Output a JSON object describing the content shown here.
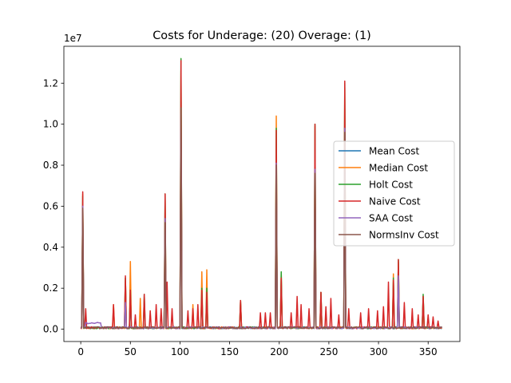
{
  "chart_data": {
    "type": "line",
    "title": "Costs for Underage: (20) Overage: (1)",
    "xlabel": "",
    "ylabel": "",
    "y_multiplier_label": "1e7",
    "xlim": [
      -17,
      382
    ],
    "ylim": [
      -600000,
      13800000
    ],
    "xticks": [
      0,
      50,
      100,
      150,
      200,
      250,
      300,
      350
    ],
    "yticks": [
      0,
      2000000,
      4000000,
      6000000,
      8000000,
      10000000,
      12000000
    ],
    "ytick_labels": [
      "0.0",
      "0.2",
      "0.4",
      "0.6",
      "0.8",
      "1.0",
      "1.2"
    ],
    "grid": false,
    "legend": "center-right",
    "baseline": 80000,
    "series": [
      {
        "name": "Mean Cost",
        "color": "#1f77b4",
        "spikes": [
          [
            2,
            5800000
          ],
          [
            50,
            1500000
          ],
          [
            85,
            5000000
          ],
          [
            101,
            10000000
          ],
          [
            197,
            8000000
          ],
          [
            236,
            7500000
          ],
          [
            266,
            9500000
          ],
          [
            320,
            2500000
          ]
        ]
      },
      {
        "name": "Median Cost",
        "color": "#ff7f0e",
        "spikes": [
          [
            2,
            6600000
          ],
          [
            33,
            1200000
          ],
          [
            45,
            2500000
          ],
          [
            50,
            3300000
          ],
          [
            60,
            1500000
          ],
          [
            85,
            6300000
          ],
          [
            101,
            12600000
          ],
          [
            113,
            1200000
          ],
          [
            122,
            2800000
          ],
          [
            127,
            2900000
          ],
          [
            161,
            1400000
          ],
          [
            197,
            10400000
          ],
          [
            202,
            2700000
          ],
          [
            236,
            9900000
          ],
          [
            242,
            1800000
          ],
          [
            266,
            11800000
          ],
          [
            315,
            2700000
          ],
          [
            320,
            3300000
          ],
          [
            345,
            1600000
          ]
        ]
      },
      {
        "name": "Holt Cost",
        "color": "#2ca02c",
        "spikes": [
          [
            2,
            6500000
          ],
          [
            45,
            2500000
          ],
          [
            50,
            1900000
          ],
          [
            64,
            1700000
          ],
          [
            85,
            6600000
          ],
          [
            101,
            13200000
          ],
          [
            122,
            2000000
          ],
          [
            127,
            2000000
          ],
          [
            161,
            1400000
          ],
          [
            197,
            9800000
          ],
          [
            202,
            2800000
          ],
          [
            236,
            10000000
          ],
          [
            242,
            1800000
          ],
          [
            266,
            12000000
          ],
          [
            315,
            2500000
          ],
          [
            320,
            3400000
          ],
          [
            345,
            1700000
          ]
        ]
      },
      {
        "name": "Naive Cost",
        "color": "#d62728",
        "spikes": [
          [
            2,
            6700000
          ],
          [
            5,
            1000000
          ],
          [
            33,
            1200000
          ],
          [
            45,
            2600000
          ],
          [
            50,
            1900000
          ],
          [
            55,
            700000
          ],
          [
            64,
            1700000
          ],
          [
            70,
            900000
          ],
          [
            76,
            1200000
          ],
          [
            81,
            1000000
          ],
          [
            85,
            6600000
          ],
          [
            87,
            2300000
          ],
          [
            92,
            1000000
          ],
          [
            101,
            13100000
          ],
          [
            108,
            900000
          ],
          [
            113,
            1000000
          ],
          [
            118,
            1200000
          ],
          [
            122,
            1900000
          ],
          [
            127,
            1800000
          ],
          [
            161,
            1400000
          ],
          [
            181,
            800000
          ],
          [
            186,
            800000
          ],
          [
            191,
            800000
          ],
          [
            197,
            9700000
          ],
          [
            202,
            2500000
          ],
          [
            212,
            800000
          ],
          [
            218,
            1600000
          ],
          [
            222,
            1200000
          ],
          [
            230,
            1000000
          ],
          [
            236,
            10000000
          ],
          [
            242,
            1800000
          ],
          [
            247,
            1100000
          ],
          [
            252,
            1500000
          ],
          [
            260,
            700000
          ],
          [
            266,
            12100000
          ],
          [
            270,
            1000000
          ],
          [
            282,
            800000
          ],
          [
            290,
            1000000
          ],
          [
            299,
            900000
          ],
          [
            305,
            1100000
          ],
          [
            310,
            2300000
          ],
          [
            315,
            2400000
          ],
          [
            320,
            3400000
          ],
          [
            326,
            1300000
          ],
          [
            334,
            1000000
          ],
          [
            340,
            700000
          ],
          [
            345,
            1600000
          ],
          [
            350,
            700000
          ],
          [
            355,
            600000
          ],
          [
            360,
            400000
          ]
        ]
      },
      {
        "name": "SAA Cost",
        "color": "#9467bd",
        "spikes": [
          [
            2,
            6000000
          ],
          [
            45,
            1300000
          ],
          [
            85,
            5400000
          ],
          [
            101,
            10500000
          ],
          [
            197,
            8100000
          ],
          [
            236,
            7800000
          ],
          [
            266,
            9800000
          ],
          [
            320,
            2600000
          ]
        ],
        "plateaus": [
          [
            5,
            20,
            300000
          ]
        ]
      },
      {
        "name": "NormsInv Cost",
        "color": "#8c564b",
        "spikes": [
          [
            2,
            5900000
          ],
          [
            85,
            5200000
          ],
          [
            101,
            10800000
          ],
          [
            197,
            8000000
          ],
          [
            236,
            7600000
          ],
          [
            266,
            9600000
          ]
        ]
      }
    ]
  }
}
